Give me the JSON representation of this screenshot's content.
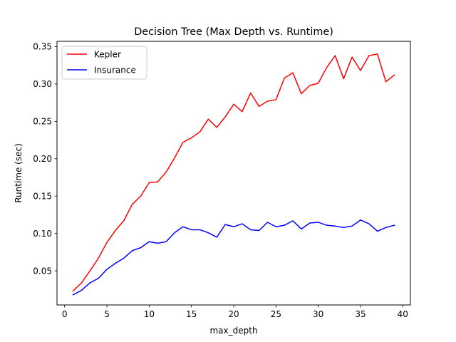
{
  "chart_data": {
    "type": "line",
    "title": "Decision Tree (Max Depth vs. Runtime)",
    "xlabel": "max_depth",
    "ylabel": "Runtime (sec)",
    "xlim": [
      -0.9,
      40.9
    ],
    "ylim": [
      0.0044,
      0.3571
    ],
    "xticks": [
      0,
      5,
      10,
      15,
      20,
      25,
      30,
      35,
      40
    ],
    "xtick_labels": [
      "0",
      "5",
      "10",
      "15",
      "20",
      "25",
      "30",
      "35",
      "40"
    ],
    "yticks": [
      0.05,
      0.1,
      0.15,
      0.2,
      0.25,
      0.3,
      0.35
    ],
    "ytick_labels": [
      "0.05",
      "0.10",
      "0.15",
      "0.20",
      "0.25",
      "0.30",
      "0.35"
    ],
    "legend": "upper-left",
    "grid": false,
    "x": [
      1,
      2,
      3,
      4,
      5,
      6,
      7,
      8,
      9,
      10,
      11,
      12,
      13,
      14,
      15,
      16,
      17,
      18,
      19,
      20,
      21,
      22,
      23,
      24,
      25,
      26,
      27,
      28,
      29,
      30,
      31,
      32,
      33,
      34,
      35,
      36,
      37,
      38,
      39
    ],
    "series": [
      {
        "name": "Kepler",
        "color": "#ff0000",
        "values": [
          0.023,
          0.034,
          0.05,
          0.067,
          0.088,
          0.104,
          0.117,
          0.139,
          0.15,
          0.168,
          0.169,
          0.182,
          0.201,
          0.222,
          0.228,
          0.236,
          0.253,
          0.242,
          0.256,
          0.273,
          0.263,
          0.288,
          0.27,
          0.277,
          0.279,
          0.308,
          0.315,
          0.287,
          0.298,
          0.301,
          0.322,
          0.338,
          0.307,
          0.336,
          0.318,
          0.338,
          0.34,
          0.303,
          0.312
        ]
      },
      {
        "name": "Insurance",
        "color": "#0000ff",
        "values": [
          0.018,
          0.024,
          0.034,
          0.04,
          0.052,
          0.06,
          0.067,
          0.077,
          0.081,
          0.089,
          0.087,
          0.089,
          0.101,
          0.109,
          0.105,
          0.105,
          0.101,
          0.095,
          0.112,
          0.109,
          0.113,
          0.105,
          0.104,
          0.115,
          0.109,
          0.111,
          0.117,
          0.106,
          0.114,
          0.115,
          0.111,
          0.11,
          0.108,
          0.11,
          0.118,
          0.113,
          0.103,
          0.108,
          0.111
        ]
      }
    ]
  }
}
